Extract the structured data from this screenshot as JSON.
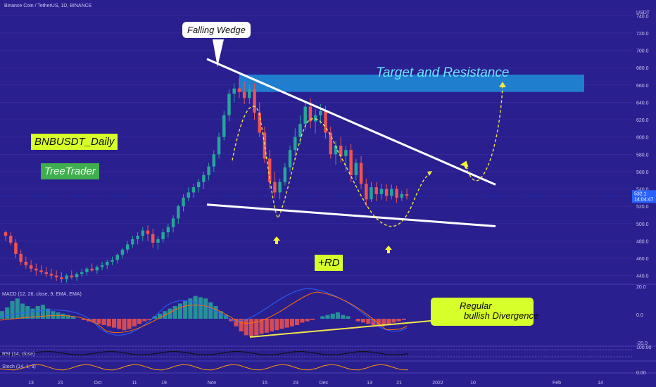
{
  "header": {
    "symbol_line": "Binance Coin / TetherUS, 1D, BINANCE"
  },
  "colors": {
    "background": "#2a1f8f",
    "candle_up": "#26a69a",
    "candle_down": "#ef5350",
    "trendline": "#ffffff",
    "target_zone": "#1e8fd9",
    "projection": "#f2e64a",
    "arrow": "#f5f531",
    "macd_line": "#2962ff",
    "signal_line": "#ff6d00"
  },
  "annotations": {
    "falling_wedge": "Falling Wedge",
    "target": "Target and Resistance",
    "pair_tag": "BNBUSDT_Daily",
    "author_tag": "TreeTrader",
    "rd_tag": "+RD",
    "divergence_line1": "Regular",
    "divergence_line2": "bullish Divergence"
  },
  "indicators": {
    "macd_label": "MACD (12, 26, close, 9, EMA, EMA)",
    "rsi_label": "RSI (14, close)",
    "stoch_label": "Stoch (14, 1, 3)"
  },
  "price_badge": {
    "price": "532.1",
    "countdown": "14:04:47",
    "color": "#2962ff"
  },
  "chart_data": {
    "type": "candlestick",
    "y_axis_unit": "USDT",
    "ylim": [
      430,
      750
    ],
    "y_ticks": [
      "740.0",
      "720.0",
      "700.0",
      "680.0",
      "660.0",
      "640.0",
      "620.0",
      "600.0",
      "580.0",
      "560.0",
      "540.0",
      "520.0",
      "500.0",
      "480.0",
      "460.0",
      "440.0"
    ],
    "x_ticks": [
      "13",
      "21",
      "Oct",
      "11",
      "19",
      "Nov",
      "15",
      "23",
      "Dec",
      "13",
      "21",
      "2022",
      "10",
      "Feb",
      "14"
    ],
    "macd_ticks": [
      "20.0",
      "0.0",
      "-20.0"
    ],
    "rsi_ticks": [
      "100.00"
    ],
    "stoch_ticks": [
      "0.00"
    ],
    "candles": [
      [
        490,
        492,
        480,
        486
      ],
      [
        486,
        490,
        475,
        478
      ],
      [
        478,
        482,
        460,
        465
      ],
      [
        465,
        470,
        452,
        456
      ],
      [
        456,
        462,
        448,
        452
      ],
      [
        452,
        458,
        444,
        448
      ],
      [
        448,
        454,
        440,
        446
      ],
      [
        446,
        452,
        441,
        444
      ],
      [
        444,
        450,
        438,
        442
      ],
      [
        442,
        448,
        436,
        440
      ],
      [
        440,
        446,
        434,
        438
      ],
      [
        438,
        444,
        432,
        436
      ],
      [
        436,
        442,
        432,
        440
      ],
      [
        440,
        446,
        436,
        438
      ],
      [
        438,
        444,
        434,
        442
      ],
      [
        442,
        448,
        438,
        444
      ],
      [
        444,
        450,
        440,
        448
      ],
      [
        448,
        454,
        444,
        446
      ],
      [
        446,
        452,
        442,
        450
      ],
      [
        450,
        456,
        446,
        452
      ],
      [
        452,
        458,
        448,
        456
      ],
      [
        456,
        462,
        452,
        458
      ],
      [
        458,
        466,
        454,
        464
      ],
      [
        464,
        472,
        460,
        470
      ],
      [
        470,
        480,
        466,
        476
      ],
      [
        476,
        486,
        472,
        482
      ],
      [
        482,
        490,
        476,
        486
      ],
      [
        486,
        496,
        480,
        492
      ],
      [
        492,
        498,
        480,
        488
      ],
      [
        488,
        494,
        472,
        478
      ],
      [
        478,
        486,
        470,
        482
      ],
      [
        482,
        494,
        478,
        490
      ],
      [
        490,
        500,
        484,
        496
      ],
      [
        496,
        510,
        490,
        506
      ],
      [
        506,
        522,
        500,
        520
      ],
      [
        520,
        534,
        514,
        530
      ],
      [
        530,
        542,
        526,
        536
      ],
      [
        536,
        546,
        530,
        542
      ],
      [
        542,
        552,
        536,
        548
      ],
      [
        548,
        560,
        540,
        556
      ],
      [
        556,
        570,
        550,
        566
      ],
      [
        566,
        585,
        560,
        580
      ],
      [
        580,
        605,
        575,
        600
      ],
      [
        600,
        630,
        596,
        625
      ],
      [
        625,
        655,
        618,
        650
      ],
      [
        650,
        662,
        640,
        656
      ],
      [
        656,
        668,
        645,
        652
      ],
      [
        652,
        664,
        638,
        645
      ],
      [
        645,
        660,
        638,
        655
      ],
      [
        655,
        662,
        620,
        628
      ],
      [
        628,
        640,
        600,
        605
      ],
      [
        605,
        612,
        570,
        575
      ],
      [
        575,
        585,
        540,
        548
      ],
      [
        548,
        560,
        530,
        536
      ],
      [
        536,
        552,
        528,
        548
      ],
      [
        548,
        570,
        544,
        565
      ],
      [
        565,
        590,
        560,
        585
      ],
      [
        585,
        610,
        578,
        600
      ],
      [
        600,
        625,
        592,
        615
      ],
      [
        615,
        640,
        608,
        635
      ],
      [
        635,
        645,
        610,
        618
      ],
      [
        618,
        632,
        604,
        625
      ],
      [
        625,
        638,
        615,
        630
      ],
      [
        630,
        636,
        598,
        605
      ],
      [
        605,
        612,
        575,
        580
      ],
      [
        580,
        595,
        568,
        590
      ],
      [
        590,
        600,
        570,
        578
      ],
      [
        578,
        590,
        560,
        585
      ],
      [
        585,
        592,
        548,
        556
      ],
      [
        556,
        575,
        550,
        570
      ],
      [
        570,
        578,
        540,
        546
      ],
      [
        546,
        552,
        520,
        528
      ],
      [
        528,
        548,
        525,
        542
      ],
      [
        542,
        548,
        526,
        534
      ],
      [
        534,
        546,
        528,
        540
      ],
      [
        540,
        546,
        526,
        532
      ],
      [
        532,
        545,
        528,
        540
      ],
      [
        540,
        544,
        524,
        530
      ],
      [
        530,
        538,
        526,
        534
      ],
      [
        534,
        540,
        528,
        532
      ]
    ],
    "falling_wedge": {
      "upper": [
        [
          0.3,
          690
        ],
        [
          0.85,
          545
        ]
      ],
      "lower": [
        [
          0.31,
          522
        ],
        [
          0.85,
          497
        ]
      ]
    },
    "target_zone": [
      652,
      672
    ],
    "current_price": 532.1
  }
}
